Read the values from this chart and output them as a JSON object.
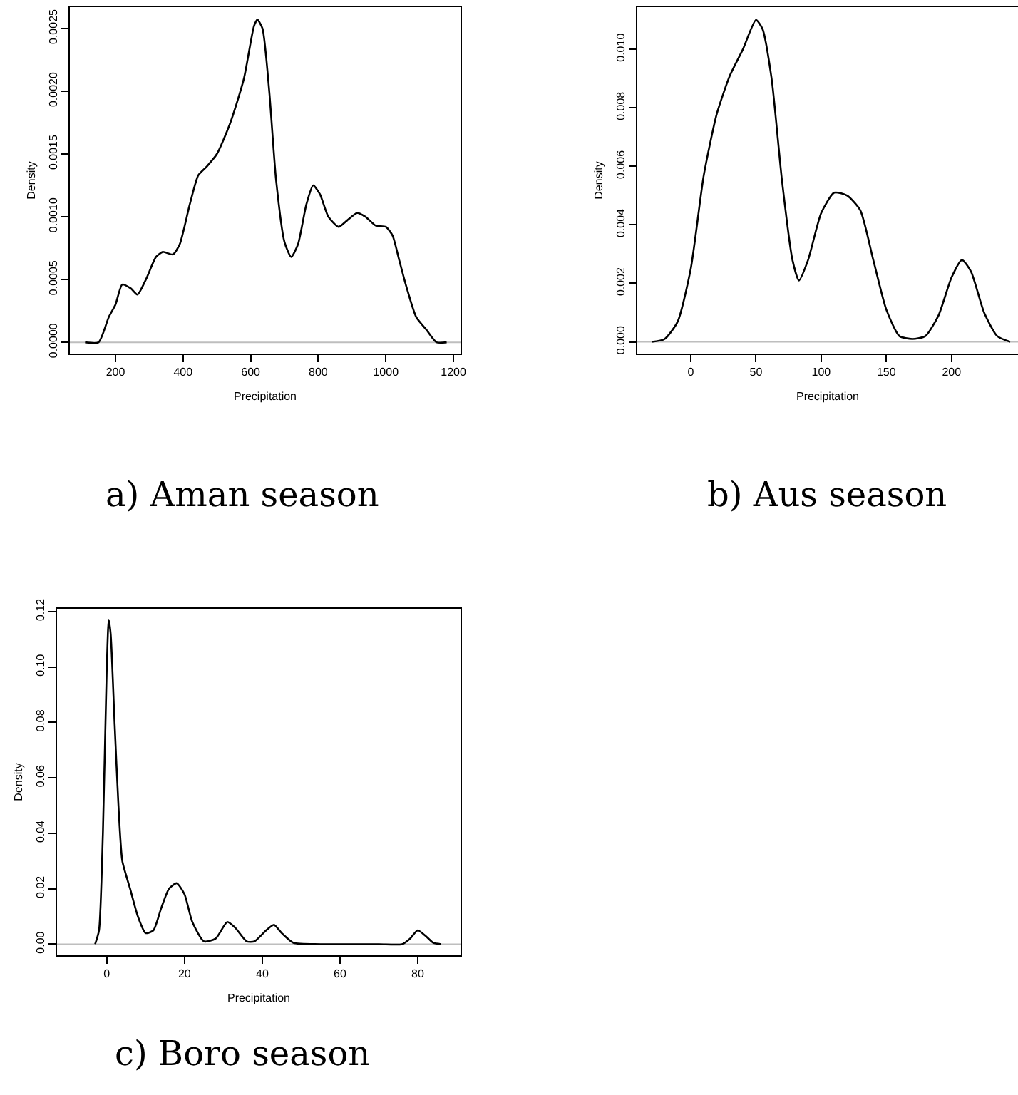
{
  "chart_data": [
    {
      "type": "line",
      "title": "a) Aman season",
      "xlabel": "Precipitation",
      "ylabel": "Density",
      "xlim": [
        65,
        1221
      ],
      "ylim": [
        -9e-05,
        0.00267
      ],
      "xticks": [
        200,
        400,
        600,
        800,
        1000,
        1200
      ],
      "yticks": [
        {
          "value": 0,
          "label": "0.0000"
        },
        {
          "value": 0.0005,
          "label": "0.0005"
        },
        {
          "value": 0.001,
          "label": "0.0010"
        },
        {
          "value": 0.0015,
          "label": "0.0015"
        },
        {
          "value": 0.002,
          "label": "0.0020"
        },
        {
          "value": 0.0025,
          "label": "0.0025"
        }
      ],
      "grid": false,
      "ref_lines": [
        {
          "axis": "y",
          "value": 0,
          "color": "#bebebe"
        }
      ],
      "series": [
        {
          "color": "#000000",
          "x": [
            110,
            150,
            180,
            200,
            220,
            245,
            265,
            290,
            320,
            340,
            370,
            390,
            420,
            445,
            470,
            500,
            540,
            580,
            610,
            620,
            635,
            655,
            675,
            700,
            720,
            740,
            765,
            785,
            805,
            830,
            860,
            885,
            915,
            940,
            970,
            1000,
            1020,
            1040,
            1060,
            1090,
            1120,
            1150,
            1180
          ],
          "values": [
            0,
            0,
            0.0002,
            0.0003,
            0.00046,
            0.00043,
            0.00038,
            0.0005,
            0.00068,
            0.00072,
            0.0007,
            0.00078,
            0.0011,
            0.00133,
            0.0014,
            0.0015,
            0.00175,
            0.0021,
            0.00252,
            0.00257,
            0.0025,
            0.002,
            0.0013,
            0.0008,
            0.00068,
            0.00078,
            0.0011,
            0.00125,
            0.00118,
            0.001,
            0.00092,
            0.00097,
            0.00103,
            0.001,
            0.00093,
            0.00092,
            0.00085,
            0.00065,
            0.00045,
            0.0002,
            0.0001,
            0,
            0
          ]
        }
      ]
    },
    {
      "type": "line",
      "title": "b) Aus season",
      "xlabel": "Precipitation",
      "ylabel": "Density",
      "xlim": [
        -41,
        251
      ],
      "ylim": [
        -0.0004,
        0.01144
      ],
      "xticks": [
        0,
        50,
        100,
        150,
        200
      ],
      "yticks": [
        {
          "value": 0,
          "label": "0.000"
        },
        {
          "value": 0.002,
          "label": "0.002"
        },
        {
          "value": 0.004,
          "label": "0.004"
        },
        {
          "value": 0.006,
          "label": "0.006"
        },
        {
          "value": 0.008,
          "label": "0.008"
        },
        {
          "value": 0.01,
          "label": "0.010"
        }
      ],
      "grid": false,
      "ref_lines": [
        {
          "axis": "y",
          "value": 0,
          "color": "#bebebe"
        }
      ],
      "series": [
        {
          "color": "#000000",
          "x": [
            -30,
            -20,
            -10,
            0,
            10,
            20,
            30,
            40,
            50,
            55,
            62,
            70,
            78,
            83,
            90,
            100,
            110,
            120,
            130,
            140,
            150,
            160,
            170,
            180,
            190,
            200,
            208,
            215,
            225,
            235,
            245
          ],
          "values": [
            0,
            0.0001,
            0.0007,
            0.0025,
            0.0057,
            0.0078,
            0.0091,
            0.01,
            0.011,
            0.0107,
            0.009,
            0.0055,
            0.0028,
            0.0021,
            0.0028,
            0.0044,
            0.0051,
            0.005,
            0.0045,
            0.0028,
            0.0011,
            0.0002,
            0.0001,
            0.0002,
            0.0009,
            0.0022,
            0.0028,
            0.0024,
            0.001,
            0.0002,
            0
          ]
        }
      ]
    },
    {
      "type": "line",
      "title": "c) Boro season",
      "xlabel": "Precipitation",
      "ylabel": "Density",
      "xlim": [
        -12.8,
        91
      ],
      "ylim": [
        -0.004,
        0.121
      ],
      "xticks": [
        0,
        20,
        40,
        60,
        80
      ],
      "yticks": [
        {
          "value": 0,
          "label": "0.00"
        },
        {
          "value": 0.02,
          "label": "0.02"
        },
        {
          "value": 0.04,
          "label": "0.04"
        },
        {
          "value": 0.06,
          "label": "0.06"
        },
        {
          "value": 0.08,
          "label": "0.08"
        },
        {
          "value": 0.1,
          "label": "0.10"
        },
        {
          "value": 0.12,
          "label": "0.12"
        }
      ],
      "grid": false,
      "ref_lines": [
        {
          "axis": "y",
          "value": 0,
          "color": "#bebebe"
        }
      ],
      "series": [
        {
          "color": "#000000",
          "x": [
            -3,
            -2,
            -1,
            0,
            0.5,
            1,
            2,
            3,
            4,
            6,
            8,
            10,
            12,
            14,
            16,
            18,
            20,
            22,
            25,
            28,
            31,
            33,
            36,
            38,
            41,
            43,
            45,
            48,
            55,
            70,
            76,
            78,
            80,
            82,
            84,
            86
          ],
          "values": [
            0,
            0.005,
            0.04,
            0.1,
            0.117,
            0.112,
            0.08,
            0.05,
            0.03,
            0.02,
            0.01,
            0.004,
            0.005,
            0.013,
            0.02,
            0.022,
            0.018,
            0.008,
            0.001,
            0.002,
            0.008,
            0.006,
            0.001,
            0.001,
            0.005,
            0.007,
            0.004,
            0.0005,
            0,
            0,
            0,
            0.002,
            0.005,
            0.003,
            0.0005,
            0
          ]
        }
      ]
    }
  ]
}
